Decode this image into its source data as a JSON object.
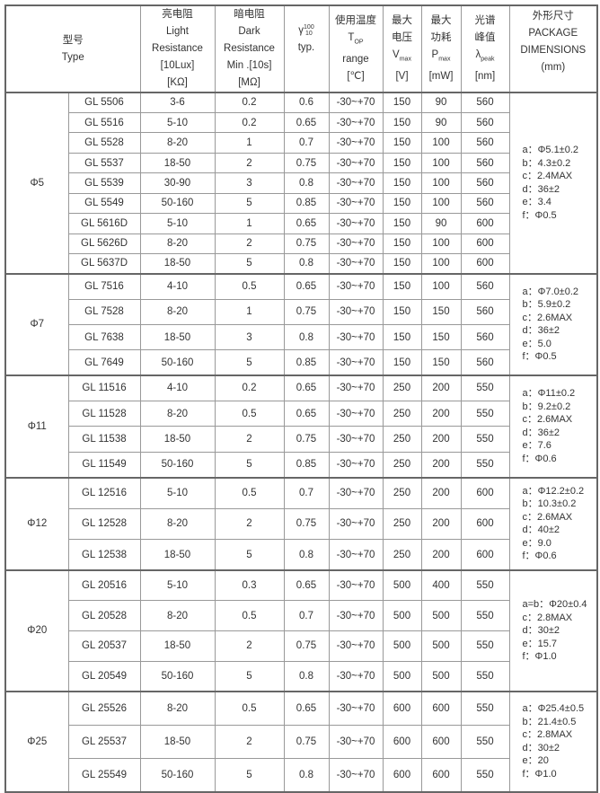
{
  "header": {
    "type_cn": "型号",
    "type_en": "Type",
    "light_cn": "亮电阻",
    "light_en1": "Light",
    "light_en2": "Resistance",
    "light_cond": "[10Lux]",
    "light_unit": "[KΩ]",
    "dark_cn": "暗电阻",
    "dark_en1": "Dark",
    "dark_en2": "Resistance",
    "dark_cond": "Min .[10s]",
    "dark_unit": "[MΩ]",
    "gamma": "γ",
    "gamma_sup": "100",
    "gamma_sub": "10",
    "gamma_typ": "typ.",
    "temp_cn": "使用温度",
    "temp_sym": "T",
    "temp_sub": "OP",
    "temp_en": "range",
    "temp_unit": "[℃]",
    "vmax_cn1": "最大",
    "vmax_cn2": "电压",
    "vmax_sym": "V",
    "vmax_sub": "max",
    "vmax_unit": "[V]",
    "pmax_cn1": "最大",
    "pmax_cn2": "功耗",
    "pmax_sym": "P",
    "pmax_sub": "max",
    "pmax_unit": "[mW]",
    "peak_cn1": "光谱",
    "peak_cn2": "峰值",
    "peak_sym": "λ",
    "peak_sub": "peak",
    "peak_unit": "[nm]",
    "dim_cn": "外形尺寸",
    "dim_en1": "PACKAGE",
    "dim_en2": "DIMENSIONS",
    "dim_unit": "(mm)"
  },
  "groups": [
    {
      "size": "Φ5",
      "dims": [
        "a：Φ5.1±0.2",
        "b：4.3±0.2",
        "c：2.4MAX",
        "d：36±2",
        "e：3.4",
        "f：Φ0.5"
      ],
      "rows": [
        [
          "GL 5506",
          "3-6",
          "0.2",
          "0.6",
          "-30~+70",
          "150",
          "90",
          "560"
        ],
        [
          "GL 5516",
          "5-10",
          "0.2",
          "0.65",
          "-30~+70",
          "150",
          "90",
          "560"
        ],
        [
          "GL 5528",
          "8-20",
          "1",
          "0.7",
          "-30~+70",
          "150",
          "100",
          "560"
        ],
        [
          "GL 5537",
          "18-50",
          "2",
          "0.75",
          "-30~+70",
          "150",
          "100",
          "560"
        ],
        [
          "GL 5539",
          "30-90",
          "3",
          "0.8",
          "-30~+70",
          "150",
          "100",
          "560"
        ],
        [
          "GL 5549",
          "50-160",
          "5",
          "0.85",
          "-30~+70",
          "150",
          "100",
          "560"
        ],
        [
          "GL 5616D",
          "5-10",
          "1",
          "0.65",
          "-30~+70",
          "150",
          "90",
          "600"
        ],
        [
          "GL 5626D",
          "8-20",
          "2",
          "0.75",
          "-30~+70",
          "150",
          "100",
          "600"
        ],
        [
          "GL 5637D",
          "18-50",
          "5",
          "0.8",
          "-30~+70",
          "150",
          "100",
          "600"
        ]
      ]
    },
    {
      "size": "Φ7",
      "dims": [
        "a：Φ7.0±0.2",
        "b：5.9±0.2",
        "c：2.6MAX",
        "d：36±2",
        "e：5.0",
        "f：Φ0.5"
      ],
      "rows": [
        [
          "GL 7516",
          "4-10",
          "0.5",
          "0.65",
          "-30~+70",
          "150",
          "100",
          "560"
        ],
        [
          "GL 7528",
          "8-20",
          "1",
          "0.75",
          "-30~+70",
          "150",
          "150",
          "560"
        ],
        [
          "GL 7638",
          "18-50",
          "3",
          "0.8",
          "-30~+70",
          "150",
          "150",
          "560"
        ],
        [
          "GL 7649",
          "50-160",
          "5",
          "0.85",
          "-30~+70",
          "150",
          "150",
          "560"
        ]
      ]
    },
    {
      "size": "Φ11",
      "dims": [
        "a：Φ11±0.2",
        "b：9.2±0.2",
        "c：2.6MAX",
        "d：36±2",
        "e：7.6",
        "f：Φ0.6"
      ],
      "rows": [
        [
          "GL 11516",
          "4-10",
          "0.2",
          "0.65",
          "-30~+70",
          "250",
          "200",
          "550"
        ],
        [
          "GL 11528",
          "8-20",
          "0.5",
          "0.65",
          "-30~+70",
          "250",
          "200",
          "550"
        ],
        [
          "GL 11538",
          "18-50",
          "2",
          "0.75",
          "-30~+70",
          "250",
          "200",
          "550"
        ],
        [
          "GL 11549",
          "50-160",
          "5",
          "0.85",
          "-30~+70",
          "250",
          "200",
          "550"
        ]
      ]
    },
    {
      "size": "Φ12",
      "dims": [
        "a：Φ12.2±0.2",
        "b：10.3±0.2",
        "c：2.6MAX",
        "d：40±2",
        "e：9.0",
        "f：Φ0.6"
      ],
      "rows": [
        [
          "GL 12516",
          "5-10",
          "0.5",
          "0.7",
          "-30~+70",
          "250",
          "200",
          "600"
        ],
        [
          "GL 12528",
          "8-20",
          "2",
          "0.75",
          "-30~+70",
          "250",
          "200",
          "600"
        ],
        [
          "GL 12538",
          "18-50",
          "5",
          "0.8",
          "-30~+70",
          "250",
          "200",
          "600"
        ]
      ]
    },
    {
      "size": "Φ20",
      "dims": [
        "a=b：Φ20±0.4",
        "c：2.8MAX",
        "d：30±2",
        "e：15.7",
        "f：Φ1.0"
      ],
      "rows": [
        [
          "GL 20516",
          "5-10",
          "0.3",
          "0.65",
          "-30~+70",
          "500",
          "400",
          "550"
        ],
        [
          "GL 20528",
          "8-20",
          "0.5",
          "0.7",
          "-30~+70",
          "500",
          "500",
          "550"
        ],
        [
          "GL 20537",
          "18-50",
          "2",
          "0.75",
          "-30~+70",
          "500",
          "500",
          "550"
        ],
        [
          "GL 20549",
          "50-160",
          "5",
          "0.8",
          "-30~+70",
          "500",
          "500",
          "550"
        ]
      ]
    },
    {
      "size": "Φ25",
      "dims": [
        "a：Φ25.4±0.5",
        "b：21.4±0.5",
        "c：2.8MAX",
        "d：30±2",
        "e：20",
        "f：Φ1.0"
      ],
      "rows": [
        [
          "GL 25526",
          "8-20",
          "0.5",
          "0.65",
          "-30~+70",
          "600",
          "600",
          "550"
        ],
        [
          "GL 25537",
          "18-50",
          "2",
          "0.75",
          "-30~+70",
          "600",
          "600",
          "550"
        ],
        [
          "GL 25549",
          "50-160",
          "5",
          "0.8",
          "-30~+70",
          "600",
          "600",
          "550"
        ]
      ]
    }
  ]
}
